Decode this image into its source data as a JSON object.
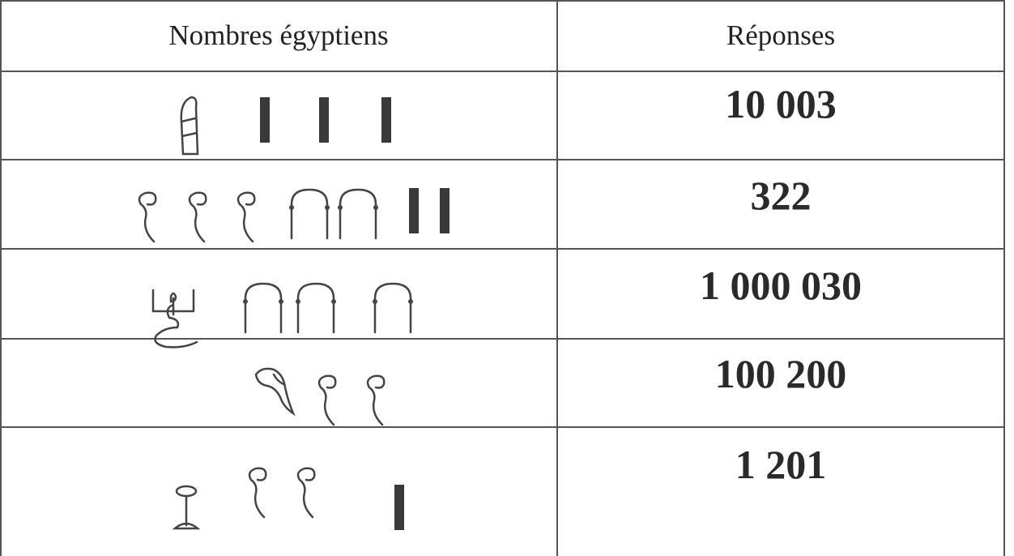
{
  "table": {
    "header": [
      "Nombres égyptiens",
      "Réponses"
    ],
    "rows": [
      {
        "reponse": "10 003"
      },
      {
        "reponse": "322"
      },
      {
        "reponse": "1 000 030"
      },
      {
        "reponse": "100 200"
      },
      {
        "reponse": "1 201"
      }
    ]
  }
}
